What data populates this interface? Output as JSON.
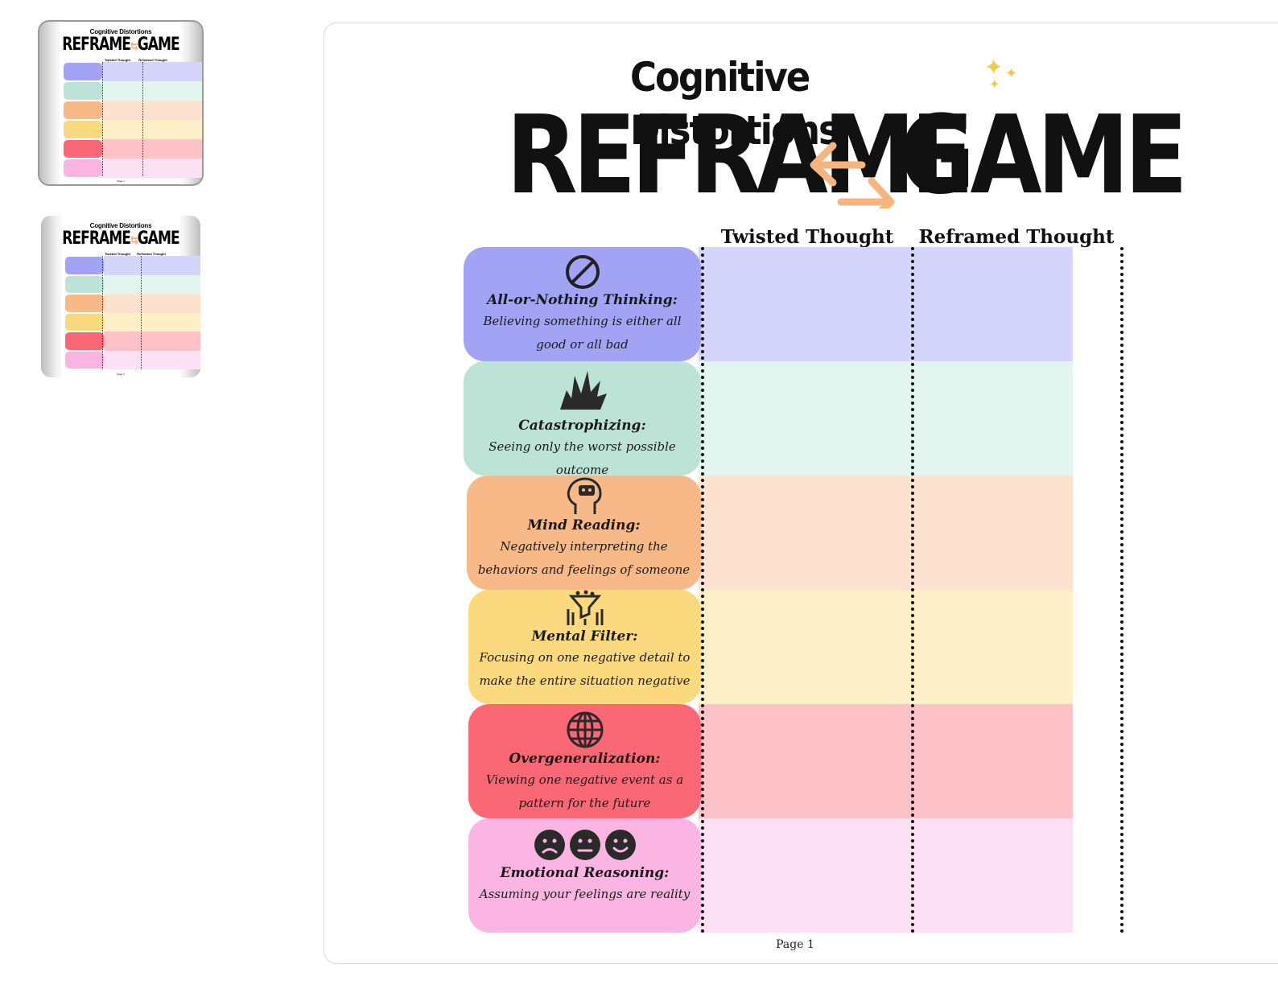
{
  "thumbnails": [
    {
      "title_small": "Cognitive Distortions",
      "title_left": "REFRAME",
      "title_right": "GAME",
      "col1": "Twisted Thought",
      "col2": "Reframed Thought",
      "page": "Page 1",
      "selected": true
    },
    {
      "title_small": "Cognitive Distortions",
      "title_left": "REFRAME",
      "title_right": "GAME",
      "col1": "Twisted Thought",
      "col2": "Reframed Thought",
      "page": "Page 2",
      "selected": false
    }
  ],
  "page": {
    "title_small": "Cognitive Distortions",
    "title_left": "REFRAME",
    "title_right": "GAME",
    "col_twisted": "Twisted Thought",
    "col_reframed": "Reframed Thought",
    "page_label": "Page 1",
    "distortions": [
      {
        "name": "All-or-Nothing Thinking:",
        "desc": "Believing something is either all good or all bad",
        "icon": "prohibited-icon",
        "label_color": "#a3a3f5",
        "cell_color": "#d5d5fc"
      },
      {
        "name": "Catastrophizing:",
        "desc": "Seeing only the worst possible outcome",
        "icon": "explosion-icon",
        "label_color": "#bde3d6",
        "cell_color": "#e2f5ee"
      },
      {
        "name": "Mind Reading:",
        "desc": "Negatively interpreting the behaviors and feelings of someone",
        "icon": "head-thought-icon",
        "label_color": "#f6b987",
        "cell_color": "#fde2cf"
      },
      {
        "name": "Mental Filter:",
        "desc": "Focusing on one negative detail to make the entire situation negative",
        "icon": "filter-icon",
        "label_color": "#fbd97e",
        "cell_color": "#fdefc8"
      },
      {
        "name": "Overgeneralization:",
        "desc": "Viewing one negative event as a pattern for the future",
        "icon": "globe-icon",
        "label_color": "#fa6775",
        "cell_color": "#fdc2c8"
      },
      {
        "name": "Emotional Reasoning:",
        "desc": "Assuming your feelings are reality",
        "icon": "faces-icon",
        "label_color": "#fbb5e3",
        "cell_color": "#fce0f4"
      }
    ]
  }
}
